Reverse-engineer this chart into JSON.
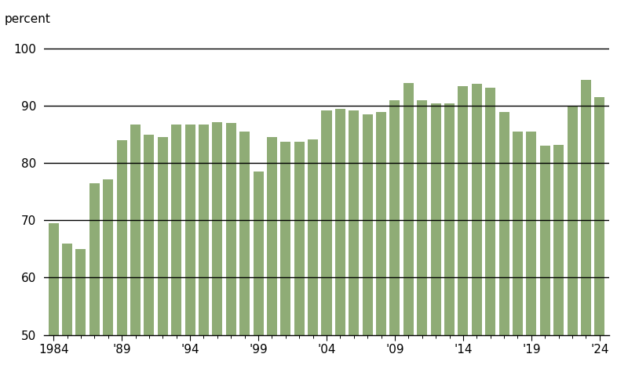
{
  "years": [
    1984,
    1985,
    1986,
    1987,
    1988,
    1989,
    1990,
    1991,
    1992,
    1993,
    1994,
    1995,
    1996,
    1997,
    1998,
    1999,
    2000,
    2001,
    2002,
    2003,
    2004,
    2005,
    2006,
    2007,
    2008,
    2009,
    2010,
    2011,
    2012,
    2013,
    2014,
    2015,
    2016,
    2017,
    2018,
    2019,
    2020,
    2021,
    2022,
    2023,
    2024
  ],
  "values": [
    69.5,
    66.0,
    65.0,
    76.5,
    77.2,
    84.0,
    86.8,
    85.0,
    84.5,
    86.7,
    86.7,
    86.7,
    87.2,
    87.0,
    85.5,
    78.5,
    84.5,
    83.8,
    83.8,
    84.2,
    89.2,
    89.5,
    89.2,
    88.5,
    89.0,
    91.0,
    94.0,
    91.0,
    90.5,
    90.5,
    93.5,
    93.8,
    93.2,
    89.0,
    85.5,
    85.5,
    83.0,
    83.2,
    90.0,
    94.5,
    91.6
  ],
  "bar_color": "#8fac76",
  "figure_bg": "#ffffff",
  "axes_bg": "#ffffff",
  "ylabel_text": "percent",
  "ylim_min": 50,
  "ylim_max": 102,
  "yticks": [
    50,
    60,
    70,
    80,
    90,
    100
  ],
  "hlines": [
    60,
    70,
    80,
    90,
    100
  ],
  "xtick_labels": [
    "1984",
    "'89",
    "'94",
    "'99",
    "'04",
    "'09",
    "'14",
    "'19",
    "'24"
  ],
  "xtick_positions": [
    1984,
    1989,
    1994,
    1999,
    2004,
    2009,
    2014,
    2019,
    2024
  ],
  "xlim_min": 1983.3,
  "xlim_max": 2024.7,
  "bar_width": 0.75,
  "tick_fontsize": 11,
  "ylabel_fontsize": 11,
  "line_color": "#000000",
  "line_width": 1.0
}
